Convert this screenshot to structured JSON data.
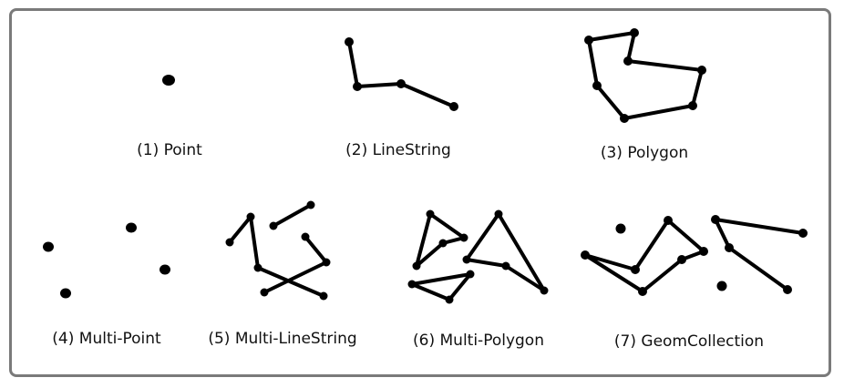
{
  "diagram": {
    "panels": [
      {
        "id": "point",
        "caption": "(1) Point"
      },
      {
        "id": "linestring",
        "caption": "(2) LineString"
      },
      {
        "id": "polygon",
        "caption": "(3) Polygon"
      },
      {
        "id": "multipoint",
        "caption": "(4) Multi-Point"
      },
      {
        "id": "multilinestring",
        "caption": "(5) Multi-LineString"
      },
      {
        "id": "multipolygon",
        "caption": "(6) Multi-Polygon"
      },
      {
        "id": "geomcollection",
        "caption": "(7) GeomCollection"
      }
    ],
    "colors": {
      "frame_border": "#7a7a7a",
      "shape": "#000000",
      "text": "#111111"
    }
  }
}
